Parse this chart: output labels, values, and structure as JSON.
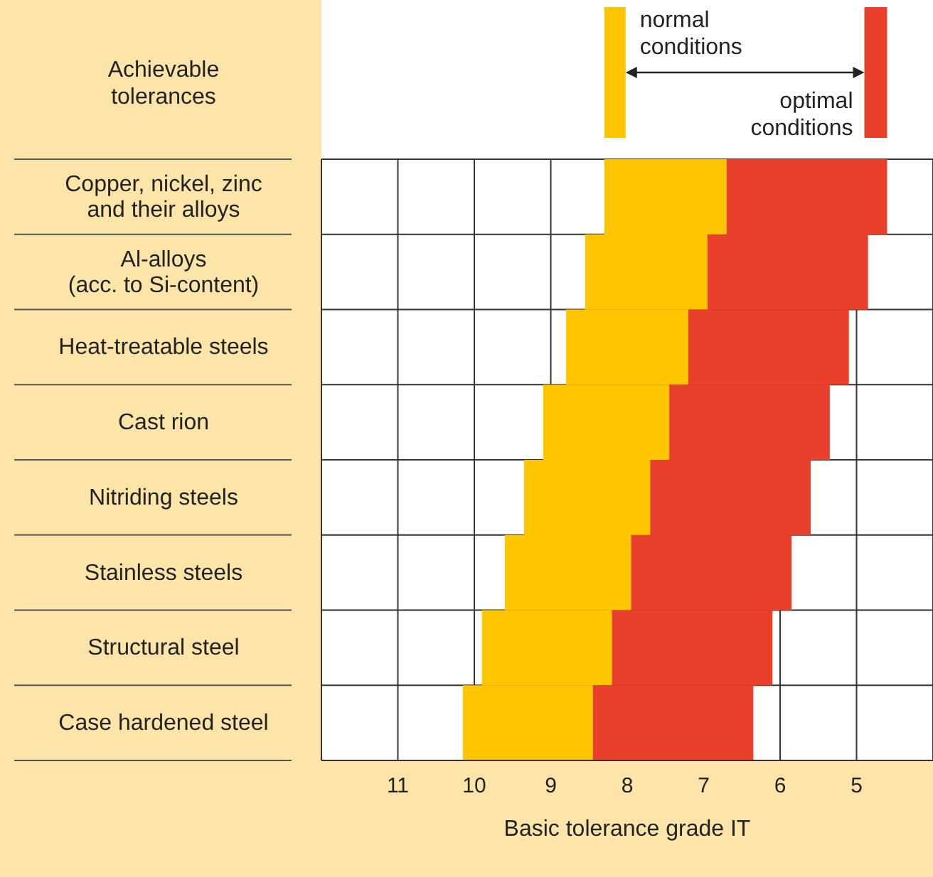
{
  "chart_data": {
    "type": "bar",
    "orientation": "horizontal",
    "title": "Achievable tolerances",
    "xlabel": "Basic tolerance grade IT",
    "categories": [
      "Copper, nickel, zinc\nand their alloys",
      "Al-alloys\n(acc. to Si-content)",
      "Heat-treatable steels",
      "Cast rion",
      "Nitriding steels",
      "Stainless steels",
      "Structural steel",
      "Case hardened steel"
    ],
    "series": [
      {
        "name": "normal conditions",
        "color": "#ffc600",
        "base": [
          6.7,
          6.95,
          7.2,
          7.45,
          7.7,
          7.95,
          8.2,
          8.45
        ],
        "values": [
          1.6,
          1.6,
          1.6,
          1.65,
          1.65,
          1.65,
          1.7,
          1.7
        ]
      },
      {
        "name": "optimal conditions",
        "color": "#e8402a",
        "base": [
          4.6,
          4.85,
          5.1,
          5.35,
          5.6,
          5.85,
          6.1,
          6.35
        ],
        "values": [
          2.1,
          2.1,
          2.1,
          2.1,
          2.1,
          2.1,
          2.1,
          2.1
        ]
      }
    ],
    "xlim": [
      12,
      4
    ],
    "xticks": [
      11,
      10,
      9,
      8,
      7,
      6,
      5
    ],
    "grid": true,
    "legend": "top right"
  }
}
